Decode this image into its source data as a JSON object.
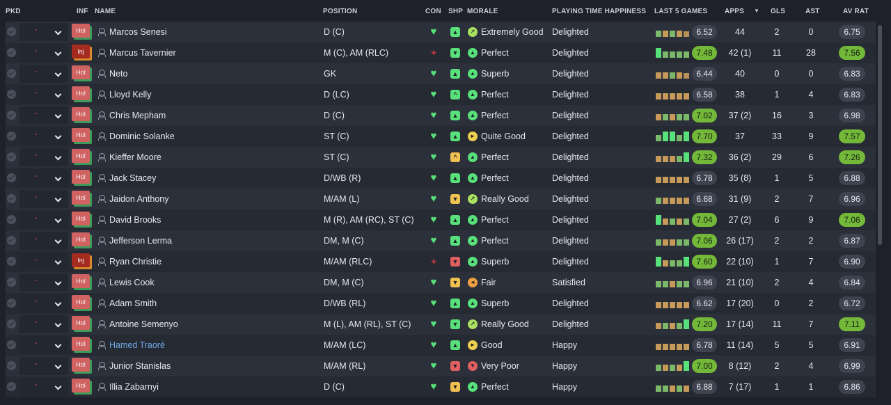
{
  "headers": {
    "pkd": "PKD",
    "inf": "INF",
    "name": "NAME",
    "position": "POSITION",
    "con": "CON",
    "shp": "SHP",
    "morale": "MORALE",
    "pth": "PLAYING TIME HAPPINESS",
    "last5": "LAST 5 GAMES",
    "apps": "APPS",
    "sort_indicator": "▼",
    "gls": "GLS",
    "ast": "AST",
    "avrat": "AV RAT"
  },
  "colors": {
    "positive": "#58e07a",
    "negative": "#e06060",
    "rating_good": "#74b83a",
    "link": "#6fa8e6"
  },
  "icons": {
    "pkd": "check-icon",
    "dropdown": "chevron-down-icon",
    "player": "person-icon",
    "condition": "heart-icon",
    "injury": "red-cross-icon"
  },
  "players": [
    {
      "pkd": "-",
      "inf": "Hol",
      "name": "Marcos Senesi",
      "position": "D (C)",
      "con": "heart",
      "shp": "g",
      "shp_glyph": "▲",
      "morale_icon": "lg",
      "morale_glyph": "↗",
      "morale": "Extremely Good",
      "pth": "Delighted",
      "form": [
        "mg",
        "mo",
        "mg",
        "mo",
        "lo"
      ],
      "last5": "6.52",
      "last5_good": false,
      "apps": "44",
      "gls": "2",
      "ast": "0",
      "avrat": "6.75",
      "avrat_good": false
    },
    {
      "pkd": "-",
      "inf": "Inj",
      "name": "Marcus Tavernier",
      "position": "M (C), AM (RLC)",
      "con": "injury",
      "shp": "g",
      "shp_glyph": "▼",
      "morale_icon": "g",
      "morale_glyph": "▲",
      "morale": "Perfect",
      "pth": "Delighted",
      "form": [
        "hg",
        "mg",
        "mg",
        "mg",
        "mg"
      ],
      "last5": "7.48",
      "last5_good": true,
      "apps": "42 (1)",
      "gls": "11",
      "ast": "28",
      "avrat": "7.56",
      "avrat_good": true
    },
    {
      "pkd": "-",
      "inf": "Hol",
      "name": "Neto",
      "position": "GK",
      "con": "heart",
      "shp": "g",
      "shp_glyph": "▲",
      "morale_icon": "g",
      "morale_glyph": "▲",
      "morale": "Superb",
      "pth": "Delighted",
      "form": [
        "mo",
        "mo",
        "mg",
        "mo",
        "lo"
      ],
      "last5": "6.44",
      "last5_good": false,
      "apps": "40",
      "gls": "0",
      "ast": "0",
      "avrat": "6.83",
      "avrat_good": false
    },
    {
      "pkd": "-",
      "inf": "Hol",
      "name": "Lloyd Kelly",
      "position": "D (LC)",
      "con": "heart",
      "shp": "g",
      "shp_glyph": "^",
      "morale_icon": "g",
      "morale_glyph": "▲",
      "morale": "Perfect",
      "pth": "Delighted",
      "form": [
        "mo",
        "mo",
        "mo",
        "mo",
        "mo"
      ],
      "last5": "6.58",
      "last5_good": false,
      "apps": "38",
      "gls": "1",
      "ast": "4",
      "avrat": "6.83",
      "avrat_good": false
    },
    {
      "pkd": "-",
      "inf": "Hol",
      "name": "Chris Mepham",
      "position": "D (C)",
      "con": "heart",
      "shp": "g",
      "shp_glyph": "▲",
      "morale_icon": "g",
      "morale_glyph": "▲",
      "morale": "Perfect",
      "pth": "Delighted",
      "form": [
        "mo",
        "mg",
        "mo",
        "mg",
        "mg"
      ],
      "last5": "7.02",
      "last5_good": true,
      "apps": "37 (2)",
      "gls": "16",
      "ast": "3",
      "avrat": "6.98",
      "avrat_good": false
    },
    {
      "pkd": "-",
      "inf": "Hol",
      "name": "Dominic Solanke",
      "position": "ST (C)",
      "con": "heart",
      "shp": "g",
      "shp_glyph": "▲",
      "morale_icon": "y",
      "morale_glyph": "►",
      "morale": "Quite Good",
      "pth": "Delighted",
      "form": [
        "mg",
        "hg",
        "hg",
        "mg",
        "hg"
      ],
      "last5": "7.70",
      "last5_good": true,
      "apps": "37",
      "gls": "33",
      "ast": "9",
      "avrat": "7.57",
      "avrat_good": true
    },
    {
      "pkd": "-",
      "inf": "Hol",
      "name": "Kieffer Moore",
      "position": "ST (C)",
      "con": "heart",
      "shp": "y",
      "shp_glyph": "^",
      "morale_icon": "g",
      "morale_glyph": "▲",
      "morale": "Perfect",
      "pth": "Delighted",
      "form": [
        "mo",
        "mo",
        "mo",
        "mg",
        "hg"
      ],
      "last5": "7.32",
      "last5_good": true,
      "apps": "36 (2)",
      "gls": "29",
      "ast": "6",
      "avrat": "7.26",
      "avrat_good": true
    },
    {
      "pkd": "-",
      "inf": "Hol",
      "name": "Jack Stacey",
      "position": "D/WB (R)",
      "con": "heart",
      "shp": "g",
      "shp_glyph": "▲",
      "morale_icon": "g",
      "morale_glyph": "▲",
      "morale": "Perfect",
      "pth": "Delighted",
      "form": [
        "mo",
        "mo",
        "mo",
        "mo",
        "mo"
      ],
      "last5": "6.78",
      "last5_good": false,
      "apps": "35 (8)",
      "gls": "1",
      "ast": "5",
      "avrat": "6.88",
      "avrat_good": false
    },
    {
      "pkd": "-",
      "inf": "Hol",
      "name": "Jaidon Anthony",
      "position": "M/AM (L)",
      "con": "heart",
      "shp": "y",
      "shp_glyph": "▼",
      "morale_icon": "lg",
      "morale_glyph": "↗",
      "morale": "Really Good",
      "pth": "Delighted",
      "form": [
        "mg",
        "mo",
        "mo",
        "mo",
        "mo"
      ],
      "last5": "6.68",
      "last5_good": false,
      "apps": "31 (9)",
      "gls": "2",
      "ast": "7",
      "avrat": "6.96",
      "avrat_good": false
    },
    {
      "pkd": "-",
      "inf": "Hol",
      "name": "David Brooks",
      "position": "M (R), AM (RC), ST (C)",
      "con": "heart",
      "shp": "g",
      "shp_glyph": "▲",
      "morale_icon": "g",
      "morale_glyph": "▲",
      "morale": "Perfect",
      "pth": "Delighted",
      "form": [
        "hg",
        "mo",
        "mg",
        "mo",
        "mg"
      ],
      "last5": "7.04",
      "last5_good": true,
      "apps": "27 (2)",
      "gls": "6",
      "ast": "9",
      "avrat": "7.06",
      "avrat_good": true
    },
    {
      "pkd": "-",
      "inf": "Hol",
      "name": "Jefferson Lerma",
      "position": "DM, M (C)",
      "con": "heart",
      "shp": "g",
      "shp_glyph": "▲",
      "morale_icon": "g",
      "morale_glyph": "▲",
      "morale": "Perfect",
      "pth": "Delighted",
      "form": [
        "mg",
        "mo",
        "mo",
        "mg",
        "mg"
      ],
      "last5": "7.06",
      "last5_good": true,
      "apps": "26 (17)",
      "gls": "2",
      "ast": "2",
      "avrat": "6.87",
      "avrat_good": false
    },
    {
      "pkd": "-",
      "inf": "Inj",
      "name": "Ryan Christie",
      "position": "M/AM (RLC)",
      "con": "injury",
      "shp": "r",
      "shp_glyph": "▼",
      "morale_icon": "g",
      "morale_glyph": "▲",
      "morale": "Superb",
      "pth": "Delighted",
      "form": [
        "hg",
        "mo",
        "mg",
        "mg",
        "hg"
      ],
      "last5": "7.60",
      "last5_good": true,
      "apps": "22 (10)",
      "gls": "1",
      "ast": "7",
      "avrat": "6.90",
      "avrat_good": false
    },
    {
      "pkd": "-",
      "inf": "Hol",
      "name": "Lewis Cook",
      "position": "DM, M (C)",
      "con": "heart",
      "shp": "y",
      "shp_glyph": "▼",
      "morale_icon": "o",
      "morale_glyph": "◄",
      "morale": "Fair",
      "pth": "Satisfied",
      "form": [
        "mg",
        "mg",
        "mo",
        "mg",
        "mg"
      ],
      "last5": "6.96",
      "last5_good": false,
      "apps": "21 (10)",
      "gls": "2",
      "ast": "4",
      "avrat": "6.84",
      "avrat_good": false
    },
    {
      "pkd": "-",
      "inf": "Hol",
      "name": "Adam Smith",
      "position": "D/WB (RL)",
      "con": "heart",
      "shp": "g",
      "shp_glyph": "▲",
      "morale_icon": "g",
      "morale_glyph": "▲",
      "morale": "Superb",
      "pth": "Delighted",
      "form": [
        "mo",
        "mo",
        "mo",
        "mo",
        "mo"
      ],
      "last5": "6.62",
      "last5_good": false,
      "apps": "17 (20)",
      "gls": "0",
      "ast": "2",
      "avrat": "6.72",
      "avrat_good": false
    },
    {
      "pkd": "-",
      "inf": "Hol",
      "name": "Antoine Semenyo",
      "position": "M (L), AM (RL), ST (C)",
      "con": "heart",
      "shp": "g",
      "shp_glyph": "▼",
      "morale_icon": "lg",
      "morale_glyph": "↗",
      "morale": "Really Good",
      "pth": "Delighted",
      "form": [
        "mo",
        "mg",
        "mo",
        "mg",
        "hg"
      ],
      "last5": "7.20",
      "last5_good": true,
      "apps": "17 (14)",
      "gls": "11",
      "ast": "7",
      "avrat": "7.11",
      "avrat_good": true
    },
    {
      "pkd": "-",
      "inf": "Hol",
      "name": "Hamed Traoré",
      "position": "M/AM (LC)",
      "con": "heart",
      "shp": "g",
      "shp_glyph": "▲",
      "morale_icon": "y",
      "morale_glyph": "►",
      "morale": "Good",
      "pth": "Happy",
      "form": [
        "mo",
        "mo",
        "mo",
        "mo",
        "mo"
      ],
      "last5": "6.78",
      "last5_good": false,
      "apps": "11 (14)",
      "gls": "5",
      "ast": "5",
      "avrat": "6.91",
      "avrat_good": false,
      "link": true
    },
    {
      "pkd": "-",
      "inf": "Hol",
      "name": "Junior Stanislas",
      "position": "M/AM (RL)",
      "con": "heart",
      "shp": "r",
      "shp_glyph": "▼",
      "morale_icon": "r",
      "morale_glyph": "▼",
      "morale": "Very Poor",
      "pth": "Happy",
      "form": [
        "mg",
        "mo",
        "mg",
        "mo",
        "hg"
      ],
      "last5": "7.00",
      "last5_good": true,
      "apps": "8 (12)",
      "gls": "2",
      "ast": "4",
      "avrat": "6.99",
      "avrat_good": false
    },
    {
      "pkd": "-",
      "inf": "Hol",
      "name": "Illia Zabarnyi",
      "position": "D (C)",
      "con": "heart",
      "shp": "y",
      "shp_glyph": "▼",
      "morale_icon": "g",
      "morale_glyph": "▲",
      "morale": "Perfect",
      "pth": "Happy",
      "form": [
        "mg",
        "mg",
        "mo",
        "mg",
        "mo"
      ],
      "last5": "6.88",
      "last5_good": false,
      "apps": "7 (17)",
      "gls": "1",
      "ast": "1",
      "avrat": "6.86",
      "avrat_good": false
    }
  ]
}
